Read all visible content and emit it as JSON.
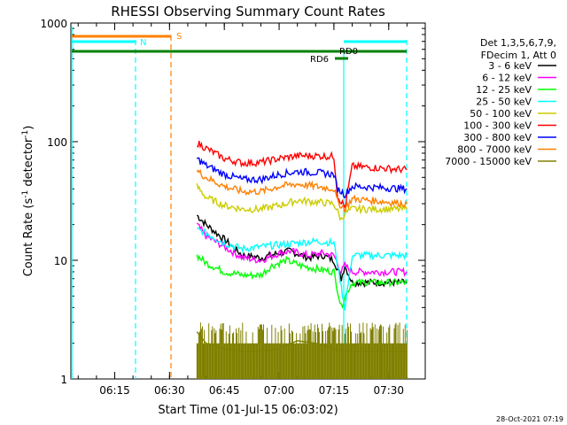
{
  "chart_data": {
    "type": "line",
    "title": "RHESSI Observing Summary Count Rates",
    "xlabel": "Start Time (01-Jul-15 06:03:02)",
    "ylabel_main": "Count Rate (s",
    "ylabel_sup": "-1",
    "ylabel_mid": " detector",
    "ylabel_sup2": "-1",
    "ylabel_end": ")",
    "ylog": true,
    "ylim": [
      1,
      1000
    ],
    "x_axis_minutes_from_0600": [
      3,
      40
    ],
    "x_ticks": [
      {
        "label": "06:15",
        "min": 15
      },
      {
        "label": "06:30",
        "min": 30
      },
      {
        "label": "06:45",
        "min": 45
      },
      {
        "label": "07:00",
        "min": 60
      },
      {
        "label": "07:15",
        "min": 75
      },
      {
        "label": "07:30",
        "min": 90
      }
    ],
    "y_ticks": [
      {
        "label": "1",
        "value": 1
      },
      {
        "label": "10",
        "value": 10
      },
      {
        "label": "100",
        "value": 100
      },
      {
        "label": "1000",
        "value": 1000
      }
    ],
    "legend_header": [
      "Det 1,3,5,6,7,9,",
      "FDecim 1, Att 0"
    ],
    "legend_position": "top-right",
    "series": [
      {
        "name": "3 - 6 keV",
        "color": "#000000",
        "points": [
          [
            37.5,
            24
          ],
          [
            40,
            20
          ],
          [
            45,
            15
          ],
          [
            50,
            11
          ],
          [
            55,
            10.5
          ],
          [
            60,
            11.5
          ],
          [
            63,
            12
          ],
          [
            68,
            10.5
          ],
          [
            72,
            11
          ],
          [
            75,
            10
          ],
          [
            77,
            7
          ],
          [
            78,
            9
          ],
          [
            80,
            6.5
          ],
          [
            95,
            6.5
          ]
        ]
      },
      {
        "name": "6 - 12 keV",
        "color": "#ff00ff",
        "points": [
          [
            37.5,
            20
          ],
          [
            40,
            16
          ],
          [
            45,
            13
          ],
          [
            50,
            10.5
          ],
          [
            55,
            10
          ],
          [
            60,
            11.5
          ],
          [
            63,
            12
          ],
          [
            68,
            11
          ],
          [
            72,
            11.5
          ],
          [
            75,
            11
          ],
          [
            77,
            8
          ],
          [
            78,
            9
          ],
          [
            80,
            8
          ],
          [
            95,
            8
          ]
        ]
      },
      {
        "name": "12 - 25 keV",
        "color": "#00ff00",
        "points": [
          [
            37.5,
            11
          ],
          [
            40,
            9.5
          ],
          [
            45,
            8
          ],
          [
            50,
            7.5
          ],
          [
            55,
            7.5
          ],
          [
            58,
            9
          ],
          [
            62,
            10
          ],
          [
            66,
            9
          ],
          [
            70,
            8.5
          ],
          [
            75,
            8
          ],
          [
            77,
            4
          ],
          [
            78,
            5
          ],
          [
            80,
            6.5
          ],
          [
            95,
            6.5
          ]
        ]
      },
      {
        "name": "25 - 50 keV",
        "color": "#00ffff",
        "points": [
          [
            37.5,
            18
          ],
          [
            40,
            17
          ],
          [
            45,
            14
          ],
          [
            50,
            12.5
          ],
          [
            55,
            13
          ],
          [
            60,
            13.5
          ],
          [
            65,
            14
          ],
          [
            70,
            14.5
          ],
          [
            75,
            14
          ],
          [
            77,
            6
          ],
          [
            78,
            4
          ],
          [
            80,
            11
          ],
          [
            95,
            11
          ]
        ]
      },
      {
        "name": "50 - 100 keV",
        "color": "#cccc00",
        "points": [
          [
            37.5,
            42
          ],
          [
            40,
            34
          ],
          [
            45,
            29
          ],
          [
            50,
            27
          ],
          [
            55,
            27
          ],
          [
            60,
            29
          ],
          [
            65,
            32
          ],
          [
            70,
            31
          ],
          [
            75,
            30
          ],
          [
            77,
            22
          ],
          [
            78,
            25
          ],
          [
            80,
            27
          ],
          [
            95,
            27
          ]
        ]
      },
      {
        "name": "100 - 300 keV",
        "color": "#ff0000",
        "points": [
          [
            37.5,
            98
          ],
          [
            40,
            88
          ],
          [
            45,
            72
          ],
          [
            50,
            66
          ],
          [
            55,
            67
          ],
          [
            60,
            72
          ],
          [
            65,
            76
          ],
          [
            70,
            76
          ],
          [
            75,
            75
          ],
          [
            76,
            35
          ],
          [
            78,
            28
          ],
          [
            80,
            62
          ],
          [
            95,
            58
          ]
        ]
      },
      {
        "name": "300 - 800 keV",
        "color": "#0000ff",
        "points": [
          [
            37.5,
            72
          ],
          [
            40,
            63
          ],
          [
            45,
            53
          ],
          [
            50,
            48
          ],
          [
            55,
            48
          ],
          [
            60,
            53
          ],
          [
            65,
            56
          ],
          [
            70,
            55
          ],
          [
            75,
            53
          ],
          [
            76,
            40
          ],
          [
            78,
            36
          ],
          [
            80,
            42
          ],
          [
            95,
            40
          ]
        ]
      },
      {
        "name": "800 - 7000 keV",
        "color": "#ff8000",
        "points": [
          [
            37.5,
            57
          ],
          [
            40,
            50
          ],
          [
            45,
            42
          ],
          [
            50,
            38
          ],
          [
            55,
            38
          ],
          [
            60,
            42
          ],
          [
            65,
            44
          ],
          [
            70,
            42
          ],
          [
            75,
            40
          ],
          [
            76,
            31
          ],
          [
            78,
            27
          ],
          [
            80,
            33
          ],
          [
            95,
            30
          ]
        ]
      },
      {
        "name": "7000 - 15000 keV",
        "color": "#808000",
        "points": [
          [
            37.5,
            2.5
          ],
          [
            40,
            2
          ],
          [
            45,
            1.8
          ],
          [
            50,
            1.7
          ],
          [
            55,
            1.7
          ],
          [
            60,
            1.8
          ],
          [
            65,
            2.1
          ],
          [
            70,
            2.0
          ],
          [
            75,
            1.8
          ],
          [
            80,
            1.7
          ],
          [
            95,
            1.7
          ]
        ]
      }
    ],
    "annotations": [
      {
        "label": "S",
        "color": "#ff8000"
      },
      {
        "label": "N",
        "color": "#00ffff"
      },
      {
        "label": "RD0",
        "color": "#000000"
      },
      {
        "label": "RD6",
        "color": "#000000"
      }
    ]
  },
  "footer": {
    "timestamp": "28-Oct-2021 07:19"
  }
}
